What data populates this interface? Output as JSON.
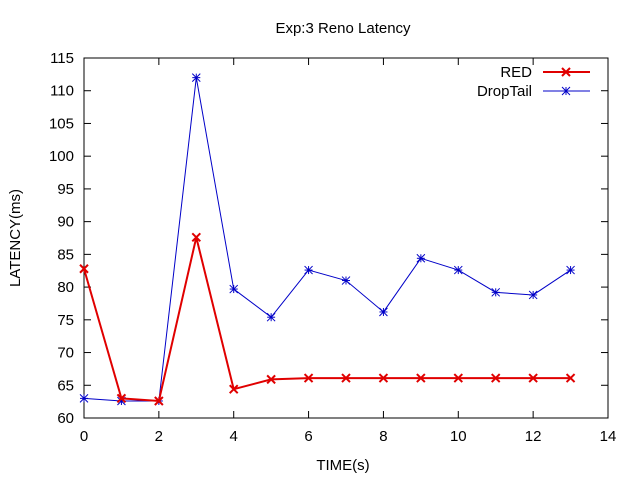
{
  "chart_data": {
    "type": "line",
    "title": "Exp:3 Reno Latency",
    "xlabel": "TIME(s)",
    "ylabel": "LATENCY(ms)",
    "xlim": [
      0,
      14
    ],
    "ylim": [
      60,
      115
    ],
    "xticks": [
      0,
      2,
      4,
      6,
      8,
      10,
      12,
      14
    ],
    "yticks": [
      60,
      65,
      70,
      75,
      80,
      85,
      90,
      95,
      100,
      105,
      110,
      115
    ],
    "grid": false,
    "legend_position": "top-right",
    "series": [
      {
        "name": "RED",
        "color": "#e00000",
        "marker": "x",
        "x": [
          0,
          1,
          2,
          3,
          4,
          5,
          6,
          7,
          8,
          9,
          10,
          11,
          12,
          13
        ],
        "y": [
          82.8,
          63.0,
          62.6,
          87.6,
          64.4,
          65.9,
          66.1,
          66.1,
          66.1,
          66.1,
          66.1,
          66.1,
          66.1,
          66.1
        ]
      },
      {
        "name": "DropTail",
        "color": "#0000c8",
        "marker": "asterisk",
        "x": [
          0,
          1,
          2,
          3,
          4,
          5,
          6,
          7,
          8,
          9,
          10,
          11,
          12,
          13
        ],
        "y": [
          63.0,
          62.6,
          62.6,
          112.0,
          79.7,
          75.4,
          82.6,
          81.0,
          76.2,
          84.4,
          82.6,
          79.2,
          78.8,
          82.6
        ]
      }
    ]
  }
}
